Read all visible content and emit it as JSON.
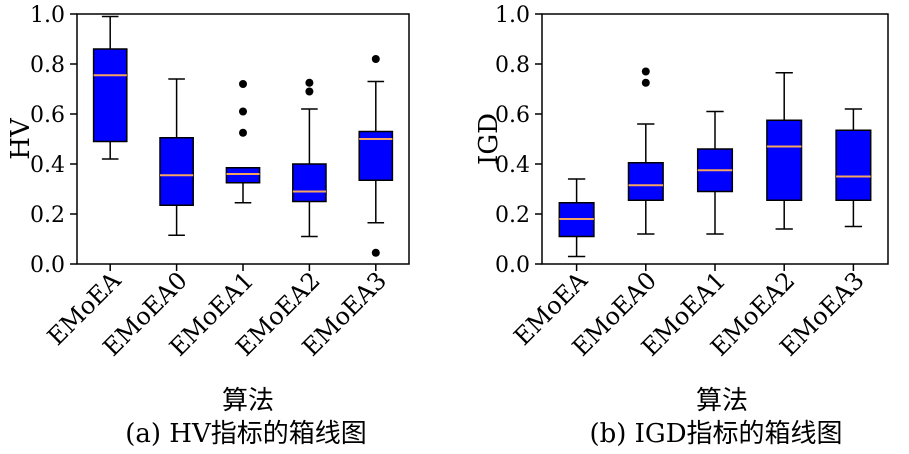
{
  "chart_data": [
    {
      "type": "box",
      "ylabel": "HV",
      "xlabel": "算法",
      "caption": "(a) HV指标的箱线图",
      "ylim": [
        0.0,
        1.0
      ],
      "yticks": [
        "0.0",
        "0.2",
        "0.4",
        "0.6",
        "0.8",
        "1.0"
      ],
      "categories": [
        "EMoEA",
        "EMoEA0",
        "EMoEA1",
        "EMoEA2",
        "EMoEA3"
      ],
      "boxes": [
        {
          "whisker_low": 0.42,
          "q1": 0.49,
          "median": 0.755,
          "q3": 0.86,
          "whisker_high": 0.99,
          "outliers": []
        },
        {
          "whisker_low": 0.115,
          "q1": 0.235,
          "median": 0.355,
          "q3": 0.505,
          "whisker_high": 0.74,
          "outliers": []
        },
        {
          "whisker_low": 0.245,
          "q1": 0.325,
          "median": 0.36,
          "q3": 0.385,
          "whisker_high": 0.385,
          "outliers": [
            0.525,
            0.61,
            0.72
          ]
        },
        {
          "whisker_low": 0.11,
          "q1": 0.25,
          "median": 0.29,
          "q3": 0.4,
          "whisker_high": 0.62,
          "outliers": [
            0.69,
            0.725
          ]
        },
        {
          "whisker_low": 0.165,
          "q1": 0.335,
          "median": 0.5,
          "q3": 0.53,
          "whisker_high": 0.73,
          "outliers": [
            0.045,
            0.82
          ]
        }
      ],
      "box_color": "#0000ff",
      "median_color": "#f4a460"
    },
    {
      "type": "box",
      "ylabel": "IGD",
      "xlabel": "算法",
      "caption": "(b) IGD指标的箱线图",
      "ylim": [
        0.0,
        1.0
      ],
      "yticks": [
        "0.0",
        "0.2",
        "0.4",
        "0.6",
        "0.8",
        "1.0"
      ],
      "categories": [
        "EMoEA",
        "EMoEA0",
        "EMoEA1",
        "EMoEA2",
        "EMoEA3"
      ],
      "boxes": [
        {
          "whisker_low": 0.03,
          "q1": 0.11,
          "median": 0.18,
          "q3": 0.245,
          "whisker_high": 0.34,
          "outliers": []
        },
        {
          "whisker_low": 0.12,
          "q1": 0.255,
          "median": 0.315,
          "q3": 0.405,
          "whisker_high": 0.56,
          "outliers": [
            0.725,
            0.77
          ]
        },
        {
          "whisker_low": 0.12,
          "q1": 0.29,
          "median": 0.375,
          "q3": 0.46,
          "whisker_high": 0.61,
          "outliers": []
        },
        {
          "whisker_low": 0.14,
          "q1": 0.255,
          "median": 0.47,
          "q3": 0.575,
          "whisker_high": 0.765,
          "outliers": []
        },
        {
          "whisker_low": 0.15,
          "q1": 0.255,
          "median": 0.35,
          "q3": 0.535,
          "whisker_high": 0.62,
          "outliers": []
        }
      ],
      "box_color": "#0000ff",
      "median_color": "#f4a460"
    }
  ]
}
